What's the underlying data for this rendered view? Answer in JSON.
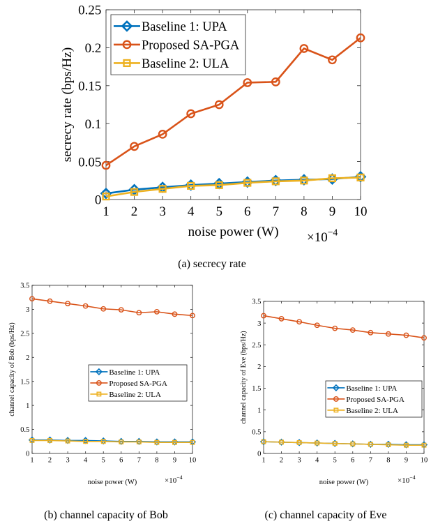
{
  "colors": {
    "upa": "#0072BD",
    "sa_pga": "#D95319",
    "ula": "#EDB120",
    "axis": "#262626",
    "grid": "#000000"
  },
  "chart_data": [
    {
      "id": "a",
      "type": "line",
      "caption": "(a) secrecy rate",
      "xlabel": "noise power (W)",
      "ylabel": "secrecy rate (bps/Hz)",
      "x_exponent_base": "×10",
      "x_exponent_power": "−4",
      "x": [
        1,
        2,
        3,
        4,
        5,
        6,
        7,
        8,
        9,
        10
      ],
      "xlim": [
        1,
        10
      ],
      "ylim": [
        0,
        0.25
      ],
      "yticks": [
        0,
        0.05,
        0.1,
        0.15,
        0.2,
        0.25
      ],
      "ytick_labels": [
        "0",
        "0.05",
        "0.1",
        "0.15",
        "0.2",
        "0.25"
      ],
      "legend_position": "top-left",
      "grid": false,
      "series": [
        {
          "name": "Baseline 1: UPA",
          "marker": "diamond",
          "values": [
            0.008,
            0.013,
            0.016,
            0.019,
            0.021,
            0.023,
            0.025,
            0.026,
            0.027,
            0.03
          ]
        },
        {
          "name": "Proposed SA-PGA",
          "marker": "circle",
          "values": [
            0.045,
            0.07,
            0.086,
            0.113,
            0.125,
            0.154,
            0.155,
            0.199,
            0.184,
            0.213
          ]
        },
        {
          "name": "Baseline 2: ULA",
          "marker": "square",
          "values": [
            0.004,
            0.01,
            0.014,
            0.018,
            0.019,
            0.022,
            0.024,
            0.025,
            0.028,
            0.029
          ]
        }
      ]
    },
    {
      "id": "b",
      "type": "line",
      "caption": "(b) channel capacity of Bob",
      "xlabel": "noise power (W)",
      "ylabel": "channel capacity of Bob (bps/Hz)",
      "x_exponent_base": "×10",
      "x_exponent_power": "−4",
      "x": [
        1,
        2,
        3,
        4,
        5,
        6,
        7,
        8,
        9,
        10
      ],
      "xlim": [
        1,
        10
      ],
      "ylim": [
        0,
        3.5
      ],
      "yticks": [
        0,
        0.5,
        1,
        1.5,
        2,
        2.5,
        3,
        3.5
      ],
      "ytick_labels": [
        "0",
        "0.5",
        "1",
        "1.5",
        "2",
        "2.5",
        "3",
        "3.5"
      ],
      "legend_position": "middle-right",
      "grid": false,
      "series": [
        {
          "name": "Baseline 1: UPA",
          "marker": "diamond",
          "values": [
            0.28,
            0.28,
            0.27,
            0.27,
            0.26,
            0.25,
            0.25,
            0.24,
            0.24,
            0.24
          ]
        },
        {
          "name": "Proposed SA-PGA",
          "marker": "circle",
          "values": [
            3.22,
            3.17,
            3.12,
            3.07,
            3.01,
            2.99,
            2.93,
            2.95,
            2.9,
            2.87
          ]
        },
        {
          "name": "Baseline 2: ULA",
          "marker": "square",
          "values": [
            0.27,
            0.27,
            0.26,
            0.25,
            0.25,
            0.24,
            0.24,
            0.23,
            0.23,
            0.23
          ]
        }
      ]
    },
    {
      "id": "c",
      "type": "line",
      "caption": "(c) channel capacity of Eve",
      "xlabel": "noise power (W)",
      "ylabel": "channel capacity of Eve (bps/Hz)",
      "x_exponent_base": "×10",
      "x_exponent_power": "−4",
      "x": [
        1,
        2,
        3,
        4,
        5,
        6,
        7,
        8,
        9,
        10
      ],
      "xlim": [
        1,
        10
      ],
      "ylim": [
        0,
        3.5
      ],
      "yticks": [
        0,
        0.5,
        1,
        1.5,
        2,
        2.5,
        3,
        3.5
      ],
      "ytick_labels": [
        "0",
        "0.5",
        "1",
        "1.5",
        "2",
        "2.5",
        "3",
        "3.5"
      ],
      "legend_position": "middle-right",
      "grid": false,
      "series": [
        {
          "name": "Baseline 1: UPA",
          "marker": "diamond",
          "values": [
            0.27,
            0.26,
            0.25,
            0.24,
            0.23,
            0.22,
            0.21,
            0.21,
            0.2,
            0.2
          ]
        },
        {
          "name": "Proposed SA-PGA",
          "marker": "circle",
          "values": [
            3.17,
            3.1,
            3.03,
            2.95,
            2.88,
            2.84,
            2.78,
            2.75,
            2.72,
            2.66
          ]
        },
        {
          "name": "Baseline 2: ULA",
          "marker": "square",
          "values": [
            0.27,
            0.26,
            0.25,
            0.24,
            0.23,
            0.22,
            0.21,
            0.2,
            0.19,
            0.19
          ]
        }
      ]
    }
  ]
}
